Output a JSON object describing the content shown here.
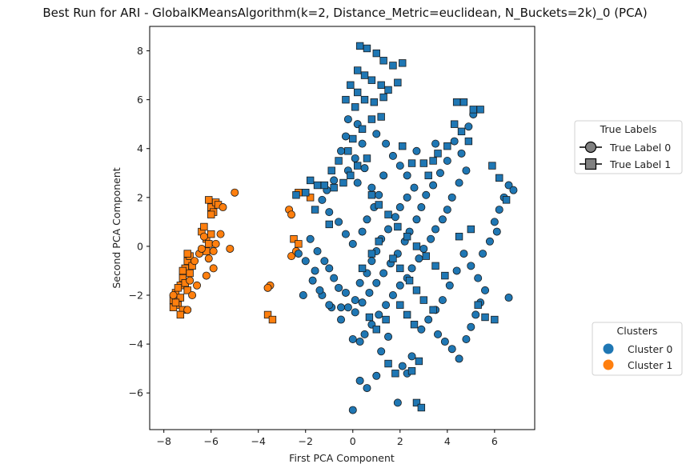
{
  "chart_data": {
    "type": "scatter",
    "title": "Best Run for ARI - GlobalKMeansAlgorithm(k=2, Distance_Metric=euclidean, N_Buckets=2k)_0 (PCA)",
    "xlabel": "First PCA Component",
    "ylabel": "Second PCA Component",
    "xlim": [
      -8.6,
      7.7
    ],
    "ylim": [
      -7.5,
      9.0
    ],
    "xticks": [
      -8,
      -6,
      -4,
      -2,
      0,
      2,
      4,
      6
    ],
    "yticks": [
      -6,
      -4,
      -2,
      0,
      2,
      4,
      6,
      8
    ],
    "xtick_labels": [
      "−8",
      "−6",
      "−4",
      "−2",
      "0",
      "2",
      "4",
      "6"
    ],
    "ytick_labels": [
      "−6",
      "−4",
      "−2",
      "0",
      "2",
      "4",
      "6",
      "8"
    ],
    "grid": false,
    "cluster_colors": {
      "Cluster 0": "#1f77b4",
      "Cluster 1": "#ff7f0e"
    },
    "marker_shapes": {
      "True Label 0": "circle",
      "True Label 1": "square"
    },
    "legends": {
      "true_labels": {
        "title": "True Labels",
        "placement": "right-upper",
        "entries": [
          {
            "label": "True Label 0",
            "marker": "circle",
            "color": "#808080"
          },
          {
            "label": "True Label 1",
            "marker": "square",
            "color": "#808080"
          }
        ]
      },
      "clusters": {
        "title": "Clusters",
        "placement": "right-lower",
        "entries": [
          {
            "label": "Cluster 0",
            "marker": "circle",
            "color": "#1f77b4"
          },
          {
            "label": "Cluster 1",
            "marker": "circle",
            "color": "#ff7f0e"
          }
        ]
      }
    },
    "series": [
      {
        "cluster": 1,
        "label": 1,
        "points": [
          [
            -7.6,
            -2.2
          ],
          [
            -7.5,
            -1.9
          ],
          [
            -7.4,
            -2.4
          ],
          [
            -7.3,
            -2.1
          ],
          [
            -7.3,
            -1.6
          ],
          [
            -7.2,
            -1.3
          ],
          [
            -7.1,
            -0.9
          ],
          [
            -7.0,
            -0.6
          ],
          [
            -6.9,
            -0.4
          ],
          [
            -7.2,
            -2.6
          ],
          [
            -7.0,
            -1.8
          ],
          [
            -7.4,
            -1.7
          ],
          [
            -7.6,
            -2.5
          ],
          [
            -7.1,
            -1.5
          ],
          [
            -6.9,
            -1.1
          ],
          [
            -7.3,
            -2.8
          ],
          [
            -6.8,
            -0.8
          ],
          [
            -7.0,
            -0.3
          ],
          [
            -7.5,
            -2.3
          ],
          [
            -7.2,
            -1.0
          ],
          [
            -6.4,
            0.6
          ],
          [
            -6.2,
            0.3
          ],
          [
            -6.1,
            0.1
          ],
          [
            -6.3,
            0.8
          ],
          [
            -6.0,
            0.5
          ],
          [
            -6.2,
            -0.2
          ],
          [
            -6.0,
            1.6
          ],
          [
            -5.8,
            1.8
          ],
          [
            -6.1,
            1.9
          ],
          [
            -5.9,
            1.4
          ],
          [
            -5.7,
            1.7
          ],
          [
            -6.0,
            1.3
          ],
          [
            -3.6,
            -2.8
          ],
          [
            -3.4,
            -3.0
          ],
          [
            -2.3,
            2.2
          ],
          [
            -1.8,
            2.0
          ],
          [
            -2.5,
            0.3
          ],
          [
            -2.3,
            0.1
          ]
        ]
      },
      {
        "cluster": 1,
        "label": 0,
        "points": [
          [
            -6.8,
            -2.0
          ],
          [
            -6.9,
            -1.4
          ],
          [
            -6.6,
            -1.6
          ],
          [
            -7.0,
            -2.6
          ],
          [
            -6.7,
            -0.6
          ],
          [
            -6.5,
            -0.3
          ],
          [
            -6.3,
            0.4
          ],
          [
            -6.4,
            -0.1
          ],
          [
            -6.1,
            -0.5
          ],
          [
            -5.6,
            0.5
          ],
          [
            -5.5,
            1.6
          ],
          [
            -5.0,
            2.2
          ],
          [
            -5.9,
            -0.9
          ],
          [
            -5.8,
            0.1
          ],
          [
            -5.2,
            -0.1
          ],
          [
            -6.2,
            -1.2
          ],
          [
            -7.6,
            -2.0
          ],
          [
            -2.7,
            1.5
          ],
          [
            -2.6,
            1.3
          ],
          [
            -3.5,
            -1.6
          ],
          [
            -3.6,
            -1.7
          ],
          [
            -2.6,
            -0.4
          ],
          [
            -2.4,
            -0.2
          ],
          [
            -5.9,
            -0.2
          ]
        ]
      },
      {
        "cluster": 0,
        "label": 0,
        "points": [
          [
            -1.8,
            0.3
          ],
          [
            -1.5,
            -0.2
          ],
          [
            -1.2,
            -0.6
          ],
          [
            -1.6,
            -1.0
          ],
          [
            -1.0,
            -0.9
          ],
          [
            -0.8,
            -1.3
          ],
          [
            -0.6,
            -1.7
          ],
          [
            -0.3,
            -1.9
          ],
          [
            -0.2,
            -2.5
          ],
          [
            0.1,
            -2.2
          ],
          [
            0.3,
            -1.5
          ],
          [
            0.6,
            -1.1
          ],
          [
            0.8,
            -0.6
          ],
          [
            1.0,
            -0.2
          ],
          [
            1.2,
            0.3
          ],
          [
            1.5,
            0.7
          ],
          [
            1.8,
            1.2
          ],
          [
            2.0,
            1.6
          ],
          [
            2.3,
            2.0
          ],
          [
            2.6,
            2.4
          ],
          [
            0.4,
            0.6
          ],
          [
            0.6,
            1.1
          ],
          [
            0.9,
            1.6
          ],
          [
            1.1,
            2.1
          ],
          [
            0.2,
            2.6
          ],
          [
            -0.2,
            3.1
          ],
          [
            0.1,
            3.6
          ],
          [
            0.4,
            4.2
          ],
          [
            -0.3,
            4.5
          ],
          [
            -0.5,
            3.9
          ],
          [
            -0.8,
            2.7
          ],
          [
            -1.1,
            2.3
          ],
          [
            -1.3,
            1.9
          ],
          [
            -1.0,
            1.4
          ],
          [
            -0.6,
            1.0
          ],
          [
            -0.3,
            0.5
          ],
          [
            0.0,
            0.1
          ],
          [
            -1.3,
            -2.0
          ],
          [
            -0.9,
            -2.5
          ],
          [
            -0.5,
            -3.0
          ],
          [
            0.3,
            -3.9
          ],
          [
            0.5,
            -3.6
          ],
          [
            0.8,
            -3.2
          ],
          [
            1.1,
            -2.8
          ],
          [
            1.4,
            -2.4
          ],
          [
            1.7,
            -2.0
          ],
          [
            2.0,
            -1.6
          ],
          [
            2.3,
            -1.3
          ],
          [
            2.5,
            -0.9
          ],
          [
            2.8,
            -0.5
          ],
          [
            3.0,
            -0.1
          ],
          [
            3.3,
            0.3
          ],
          [
            3.5,
            0.7
          ],
          [
            3.8,
            1.1
          ],
          [
            4.0,
            1.5
          ],
          [
            4.2,
            2.0
          ],
          [
            4.5,
            2.6
          ],
          [
            4.8,
            3.1
          ],
          [
            4.6,
            3.8
          ],
          [
            4.3,
            4.3
          ],
          [
            4.0,
            3.5
          ],
          [
            3.7,
            3.0
          ],
          [
            3.4,
            2.5
          ],
          [
            3.1,
            2.1
          ],
          [
            2.9,
            1.6
          ],
          [
            2.7,
            1.1
          ],
          [
            2.4,
            0.6
          ],
          [
            2.2,
            0.2
          ],
          [
            1.9,
            -0.3
          ],
          [
            1.6,
            -0.7
          ],
          [
            1.3,
            -1.1
          ],
          [
            1.0,
            -1.5
          ],
          [
            0.7,
            -1.9
          ],
          [
            0.4,
            -2.3
          ],
          [
            0.1,
            -2.7
          ],
          [
            3.6,
            -3.6
          ],
          [
            3.9,
            -3.9
          ],
          [
            4.2,
            -4.2
          ],
          [
            4.5,
            -4.6
          ],
          [
            4.8,
            -3.8
          ],
          [
            5.0,
            -3.3
          ],
          [
            5.2,
            -2.8
          ],
          [
            5.4,
            -2.3
          ],
          [
            5.6,
            -1.8
          ],
          [
            5.3,
            -1.3
          ],
          [
            5.0,
            -0.8
          ],
          [
            4.7,
            -0.3
          ],
          [
            4.4,
            -1.0
          ],
          [
            4.1,
            -1.6
          ],
          [
            3.8,
            -2.2
          ],
          [
            3.5,
            -2.6
          ],
          [
            3.2,
            -3.0
          ],
          [
            2.9,
            -3.4
          ],
          [
            6.0,
            1.0
          ],
          [
            6.2,
            1.5
          ],
          [
            6.4,
            2.0
          ],
          [
            6.6,
            2.5
          ],
          [
            6.8,
            2.3
          ],
          [
            6.1,
            0.6
          ],
          [
            5.8,
            0.2
          ],
          [
            5.5,
            -0.3
          ],
          [
            6.6,
            -2.1
          ],
          [
            2.3,
            -5.2
          ],
          [
            2.1,
            -4.9
          ],
          [
            1.9,
            -6.4
          ],
          [
            0.3,
            -5.5
          ],
          [
            0.6,
            -5.8
          ],
          [
            1.0,
            -5.3
          ],
          [
            0.0,
            -6.7
          ],
          [
            -0.5,
            -2.5
          ],
          [
            0.0,
            -3.8
          ],
          [
            1.2,
            -4.3
          ],
          [
            1.5,
            -3.7
          ],
          [
            2.5,
            -4.5
          ],
          [
            -0.2,
            5.2
          ],
          [
            0.2,
            5.0
          ],
          [
            1.0,
            4.6
          ],
          [
            1.4,
            4.2
          ],
          [
            1.7,
            3.7
          ],
          [
            2.0,
            3.3
          ],
          [
            2.3,
            2.9
          ],
          [
            -2.3,
            -0.3
          ],
          [
            -2.0,
            -0.6
          ],
          [
            -1.7,
            -1.4
          ],
          [
            -1.4,
            -1.8
          ],
          [
            -2.1,
            -2.0
          ],
          [
            -1.0,
            -2.4
          ],
          [
            0.8,
            2.4
          ],
          [
            1.3,
            2.9
          ],
          [
            2.7,
            3.9
          ],
          [
            4.9,
            4.9
          ],
          [
            5.1,
            5.4
          ],
          [
            3.5,
            4.2
          ],
          [
            0.5,
            3.2
          ]
        ]
      },
      {
        "cluster": 0,
        "label": 1,
        "points": [
          [
            0.3,
            8.2
          ],
          [
            0.6,
            8.1
          ],
          [
            1.0,
            7.9
          ],
          [
            1.3,
            7.6
          ],
          [
            1.7,
            7.4
          ],
          [
            2.1,
            7.5
          ],
          [
            0.2,
            7.2
          ],
          [
            0.5,
            7.0
          ],
          [
            0.8,
            6.8
          ],
          [
            1.2,
            6.6
          ],
          [
            1.5,
            6.4
          ],
          [
            1.9,
            6.7
          ],
          [
            -0.1,
            6.6
          ],
          [
            0.2,
            6.3
          ],
          [
            0.5,
            6.0
          ],
          [
            0.9,
            5.9
          ],
          [
            1.3,
            6.1
          ],
          [
            -0.3,
            6.0
          ],
          [
            0.1,
            5.7
          ],
          [
            4.4,
            5.9
          ],
          [
            4.7,
            5.9
          ],
          [
            5.1,
            5.6
          ],
          [
            5.4,
            5.6
          ],
          [
            4.3,
            5.0
          ],
          [
            4.6,
            4.7
          ],
          [
            4.9,
            4.3
          ],
          [
            4.0,
            4.1
          ],
          [
            3.6,
            3.8
          ],
          [
            3.4,
            3.5
          ],
          [
            -1.8,
            2.7
          ],
          [
            -1.5,
            2.5
          ],
          [
            -1.2,
            2.5
          ],
          [
            -0.8,
            2.4
          ],
          [
            -0.4,
            2.6
          ],
          [
            -0.1,
            2.9
          ],
          [
            0.2,
            3.3
          ],
          [
            0.6,
            3.6
          ],
          [
            -0.9,
            3.1
          ],
          [
            -0.6,
            3.5
          ],
          [
            -0.2,
            3.9
          ],
          [
            0.8,
            2.1
          ],
          [
            1.1,
            1.7
          ],
          [
            1.5,
            1.3
          ],
          [
            1.9,
            0.8
          ],
          [
            2.3,
            0.4
          ],
          [
            2.7,
            0.0
          ],
          [
            3.1,
            -0.4
          ],
          [
            3.5,
            -0.8
          ],
          [
            3.9,
            -1.2
          ],
          [
            1.7,
            -0.5
          ],
          [
            2.0,
            -0.9
          ],
          [
            2.4,
            -1.4
          ],
          [
            2.7,
            -1.8
          ],
          [
            3.0,
            -2.2
          ],
          [
            3.4,
            -2.6
          ],
          [
            2.0,
            -2.4
          ],
          [
            2.3,
            -2.8
          ],
          [
            2.6,
            -3.2
          ],
          [
            1.4,
            -3.0
          ],
          [
            1.0,
            -3.4
          ],
          [
            0.7,
            -2.9
          ],
          [
            0.4,
            -0.9
          ],
          [
            0.8,
            -0.3
          ],
          [
            1.1,
            0.2
          ],
          [
            -2.0,
            2.2
          ],
          [
            -1.6,
            1.5
          ],
          [
            -1.0,
            0.9
          ],
          [
            5.9,
            3.3
          ],
          [
            6.2,
            2.8
          ],
          [
            6.5,
            1.9
          ],
          [
            5.0,
            0.7
          ],
          [
            4.5,
            0.4
          ],
          [
            5.3,
            -2.4
          ],
          [
            5.6,
            -2.9
          ],
          [
            6.0,
            -3.0
          ],
          [
            2.8,
            -4.7
          ],
          [
            2.5,
            -5.1
          ],
          [
            2.7,
            -6.4
          ],
          [
            2.9,
            -6.6
          ],
          [
            1.5,
            -4.8
          ],
          [
            1.8,
            -5.2
          ],
          [
            -2.4,
            2.1
          ],
          [
            0.0,
            4.4
          ],
          [
            0.4,
            4.8
          ],
          [
            0.8,
            5.2
          ],
          [
            1.2,
            5.3
          ],
          [
            3.2,
            2.9
          ],
          [
            3.0,
            3.4
          ],
          [
            2.5,
            3.4
          ],
          [
            2.1,
            4.1
          ]
        ]
      }
    ]
  }
}
